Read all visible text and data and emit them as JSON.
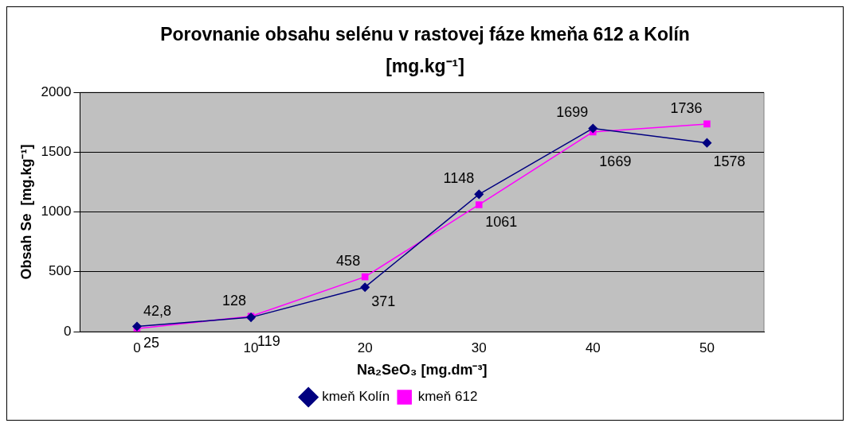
{
  "chart_data": {
    "type": "line",
    "title": "Porovnanie obsahu selénu v rastovej fáze kmeňa 612 a Kolín [mg.kg⁻¹]",
    "xlabel": "Na₂SeO₃ [mg.dm⁻³]",
    "ylabel": "Obsah Se  [mg.kg⁻¹]",
    "categories": [
      "0",
      "10",
      "20",
      "30",
      "40",
      "50"
    ],
    "ylim": [
      0,
      2000
    ],
    "yticks": [
      0,
      500,
      1000,
      1500,
      2000
    ],
    "grid": "y",
    "legend": "bottom",
    "series": [
      {
        "name": "kmeň Kolín",
        "color": "#000080",
        "marker": "diamond",
        "values": [
          42.8,
          119,
          371,
          1148,
          1699,
          1578
        ],
        "value_labels": [
          "42,8",
          "119",
          "371",
          "1148",
          "1699",
          "1578"
        ]
      },
      {
        "name": "kmeň 612",
        "color": "#ff00ff",
        "marker": "square",
        "values": [
          25,
          128,
          458,
          1061,
          1669,
          1736
        ],
        "value_labels": [
          "25",
          "128",
          "458",
          "1061",
          "1669",
          "1736"
        ]
      }
    ]
  }
}
